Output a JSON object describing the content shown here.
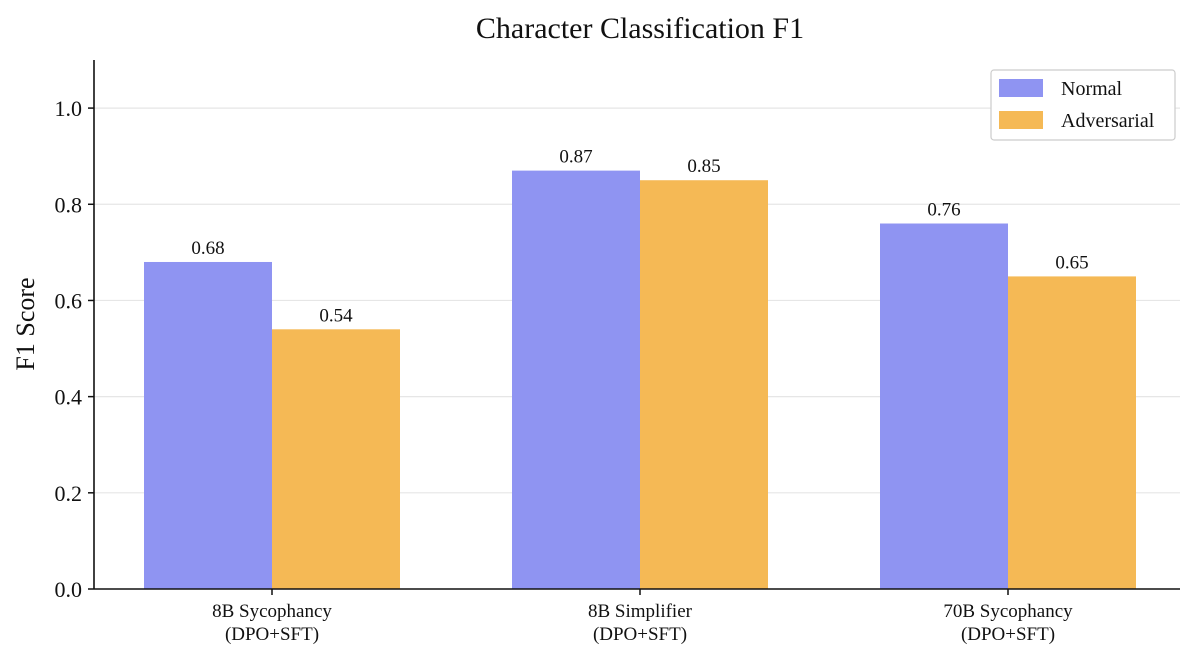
{
  "chart_data": {
    "type": "bar",
    "title": "Character Classification F1",
    "xlabel": "",
    "ylabel": "F1 Score",
    "categories": [
      [
        "8B Sycophancy",
        "(DPO+SFT)"
      ],
      [
        "8B Simplifier",
        "(DPO+SFT)"
      ],
      [
        "70B Sycophancy",
        "(DPO+SFT)"
      ]
    ],
    "series": [
      {
        "name": "Normal",
        "values": [
          0.68,
          0.87,
          0.76
        ],
        "color": "#8f94f2"
      },
      {
        "name": "Adversarial",
        "values": [
          0.54,
          0.85,
          0.65
        ],
        "color": "#f5b955"
      }
    ],
    "data_labels": [
      [
        "0.68",
        "0.87",
        "0.76"
      ],
      [
        "0.54",
        "0.85",
        "0.65"
      ]
    ],
    "ylim": [
      0,
      1.1
    ],
    "yticks": [
      0.0,
      0.2,
      0.4,
      0.6,
      0.8,
      1.0
    ],
    "ytick_labels": [
      "0.0",
      "0.2",
      "0.4",
      "0.6",
      "0.8",
      "1.0"
    ],
    "grid": "horizontal",
    "legend_position": "top-right"
  }
}
